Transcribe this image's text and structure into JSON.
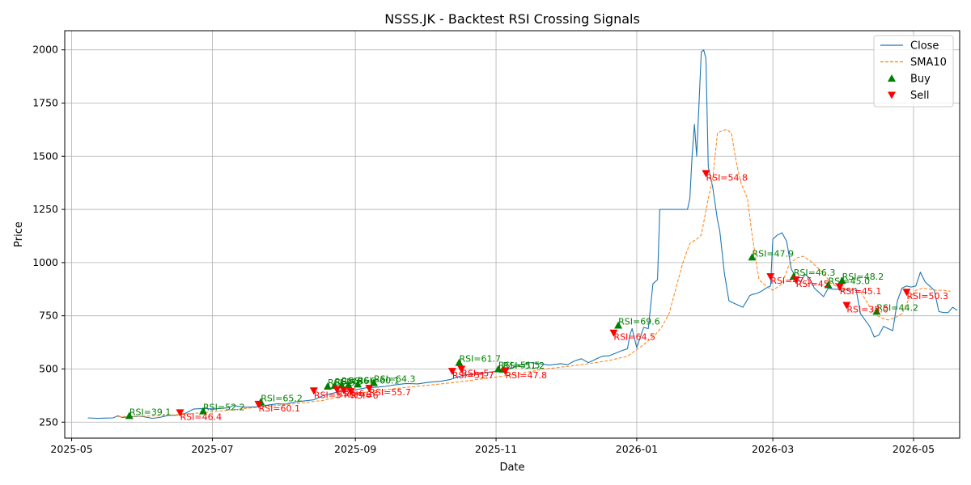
{
  "colors": {
    "close": "#1f77b4",
    "sma": "#ff7f0e",
    "buy": "#008000",
    "sell": "#ff0000",
    "grid": "#b0b0b0"
  },
  "chart_data": {
    "type": "line",
    "title": "NSSS.JK - Backtest RSI Crossing Signals",
    "xlabel": "Date",
    "ylabel": "Price",
    "xlim": [
      "2025-04-28",
      "2026-05-21"
    ],
    "ylim": [
      175,
      2090
    ],
    "x_ticks": [
      "2025-05-01",
      "2025-07-01",
      "2025-09-01",
      "2025-11-01",
      "2026-01-01",
      "2026-03-01",
      "2026-05-01"
    ],
    "x_tick_labels": [
      "2025-05",
      "2025-07",
      "2025-09",
      "2025-11",
      "2026-01",
      "2026-03",
      "2026-05"
    ],
    "y_ticks": [
      250,
      500,
      750,
      1000,
      1250,
      1500,
      1750,
      2000
    ],
    "grid": true,
    "legend_position": "top-right",
    "series": [
      {
        "name": "Close",
        "style": "solid",
        "points": [
          [
            "2025-05-08",
            270
          ],
          [
            "2025-05-12",
            268
          ],
          [
            "2025-05-19",
            270
          ],
          [
            "2025-05-21",
            280
          ],
          [
            "2025-05-23",
            272
          ],
          [
            "2025-05-27",
            276
          ],
          [
            "2025-05-31",
            278
          ],
          [
            "2025-06-05",
            268
          ],
          [
            "2025-06-08",
            272
          ],
          [
            "2025-06-12",
            282
          ],
          [
            "2025-06-15",
            282
          ],
          [
            "2025-06-19",
            290
          ],
          [
            "2025-06-23",
            312
          ],
          [
            "2025-06-27",
            314
          ],
          [
            "2025-07-02",
            312
          ],
          [
            "2025-07-08",
            318
          ],
          [
            "2025-07-10",
            328
          ],
          [
            "2025-07-15",
            320
          ],
          [
            "2025-07-20",
            322
          ],
          [
            "2025-07-25",
            330
          ],
          [
            "2025-07-29",
            336
          ],
          [
            "2025-08-02",
            335
          ],
          [
            "2025-08-05",
            344
          ],
          [
            "2025-08-10",
            350
          ],
          [
            "2025-08-14",
            355
          ],
          [
            "2025-08-18",
            375
          ],
          [
            "2025-08-23",
            388
          ],
          [
            "2025-08-27",
            398
          ],
          [
            "2025-09-01",
            402
          ],
          [
            "2025-09-06",
            412
          ],
          [
            "2025-09-11",
            415
          ],
          [
            "2025-09-14",
            418
          ],
          [
            "2025-09-18",
            425
          ],
          [
            "2025-09-23",
            432
          ],
          [
            "2025-09-28",
            430
          ],
          [
            "2025-10-03",
            438
          ],
          [
            "2025-10-08",
            442
          ],
          [
            "2025-10-12",
            450
          ],
          [
            "2025-10-16",
            465
          ],
          [
            "2025-10-20",
            475
          ],
          [
            "2025-10-25",
            478
          ],
          [
            "2025-10-29",
            485
          ],
          [
            "2025-11-03",
            492
          ],
          [
            "2025-11-06",
            498
          ],
          [
            "2025-11-08",
            505
          ],
          [
            "2025-11-12",
            520
          ],
          [
            "2025-11-16",
            530
          ],
          [
            "2025-11-20",
            525
          ],
          [
            "2025-11-24",
            518
          ],
          [
            "2025-11-29",
            525
          ],
          [
            "2025-12-02",
            520
          ],
          [
            "2025-12-05",
            538
          ],
          [
            "2025-12-08",
            548
          ],
          [
            "2025-12-11",
            530
          ],
          [
            "2025-12-14",
            545
          ],
          [
            "2025-12-17",
            560
          ],
          [
            "2025-12-20",
            562
          ],
          [
            "2025-12-23",
            575
          ],
          [
            "2025-12-26",
            588
          ],
          [
            "2025-12-28",
            595
          ],
          [
            "2025-12-29",
            660
          ],
          [
            "2025-12-30",
            690
          ],
          [
            "2026-01-01",
            600
          ],
          [
            "2026-01-04",
            695
          ],
          [
            "2026-01-06",
            690
          ],
          [
            "2026-01-08",
            900
          ],
          [
            "2026-01-10",
            920
          ],
          [
            "2026-01-11",
            1250
          ],
          [
            "2026-01-15",
            1250
          ],
          [
            "2026-01-18",
            1250
          ],
          [
            "2026-01-20",
            1250
          ],
          [
            "2026-01-23",
            1250
          ],
          [
            "2026-01-24",
            1300
          ],
          [
            "2026-01-25",
            1500
          ],
          [
            "2026-01-26",
            1650
          ],
          [
            "2026-01-27",
            1500
          ],
          [
            "2026-01-28",
            1750
          ],
          [
            "2026-01-29",
            1990
          ],
          [
            "2026-01-30",
            2000
          ],
          [
            "2026-01-31",
            1960
          ],
          [
            "2026-02-01",
            1450
          ],
          [
            "2026-02-03",
            1350
          ],
          [
            "2026-02-05",
            1200
          ],
          [
            "2026-02-06",
            1150
          ],
          [
            "2026-02-07",
            1050
          ],
          [
            "2026-02-08",
            950
          ],
          [
            "2026-02-10",
            820
          ],
          [
            "2026-02-13",
            805
          ],
          [
            "2026-02-16",
            790
          ],
          [
            "2026-02-19",
            845
          ],
          [
            "2026-02-20",
            850
          ],
          [
            "2026-02-22",
            855
          ],
          [
            "2026-02-24",
            865
          ],
          [
            "2026-02-26",
            880
          ],
          [
            "2026-02-28",
            890
          ],
          [
            "2026-03-01",
            1110
          ],
          [
            "2026-03-03",
            1130
          ],
          [
            "2026-03-05",
            1140
          ],
          [
            "2026-03-07",
            1100
          ],
          [
            "2026-03-09",
            970
          ],
          [
            "2026-03-11",
            930
          ],
          [
            "2026-03-13",
            910
          ],
          [
            "2026-03-15",
            945
          ],
          [
            "2026-03-17",
            925
          ],
          [
            "2026-03-19",
            880
          ],
          [
            "2026-03-21",
            860
          ],
          [
            "2026-03-23",
            840
          ],
          [
            "2026-03-25",
            880
          ],
          [
            "2026-03-27",
            875
          ],
          [
            "2026-03-29",
            875
          ],
          [
            "2026-03-31",
            870
          ],
          [
            "2026-04-02",
            875
          ],
          [
            "2026-04-04",
            870
          ],
          [
            "2026-04-06",
            880
          ],
          [
            "2026-04-08",
            760
          ],
          [
            "2026-04-10",
            730
          ],
          [
            "2026-04-12",
            700
          ],
          [
            "2026-04-14",
            650
          ],
          [
            "2026-04-16",
            660
          ],
          [
            "2026-04-18",
            700
          ],
          [
            "2026-04-20",
            690
          ],
          [
            "2026-04-22",
            680
          ],
          [
            "2026-04-24",
            820
          ],
          [
            "2026-04-26",
            880
          ],
          [
            "2026-04-28",
            890
          ],
          [
            "2026-04-30",
            885
          ],
          [
            "2026-05-02",
            890
          ],
          [
            "2026-05-04",
            955
          ],
          [
            "2026-05-06",
            910
          ],
          [
            "2026-05-08",
            890
          ],
          [
            "2026-05-10",
            870
          ],
          [
            "2026-05-12",
            770
          ],
          [
            "2026-05-14",
            765
          ],
          [
            "2026-05-16",
            765
          ],
          [
            "2026-05-18",
            790
          ],
          [
            "2026-05-20",
            775
          ]
        ]
      },
      {
        "name": "SMA10",
        "style": "dashed",
        "points": [
          [
            "2025-05-21",
            276
          ],
          [
            "2025-06-01",
            278
          ],
          [
            "2025-06-12",
            282
          ],
          [
            "2025-06-22",
            290
          ],
          [
            "2025-07-02",
            300
          ],
          [
            "2025-07-15",
            314
          ],
          [
            "2025-07-25",
            324
          ],
          [
            "2025-08-05",
            336
          ],
          [
            "2025-08-18",
            352
          ],
          [
            "2025-08-28",
            378
          ],
          [
            "2025-09-08",
            395
          ],
          [
            "2025-09-20",
            410
          ],
          [
            "2025-10-01",
            422
          ],
          [
            "2025-10-12",
            434
          ],
          [
            "2025-10-22",
            448
          ],
          [
            "2025-11-01",
            462
          ],
          [
            "2025-11-12",
            480
          ],
          [
            "2025-11-22",
            500
          ],
          [
            "2025-12-02",
            512
          ],
          [
            "2025-12-12",
            526
          ],
          [
            "2025-12-20",
            540
          ],
          [
            "2025-12-28",
            560
          ],
          [
            "2026-01-04",
            615
          ],
          [
            "2026-01-09",
            660
          ],
          [
            "2026-01-12",
            700
          ],
          [
            "2026-01-15",
            760
          ],
          [
            "2026-01-18",
            880
          ],
          [
            "2026-01-21",
            1000
          ],
          [
            "2026-01-24",
            1090
          ],
          [
            "2026-01-27",
            1110
          ],
          [
            "2026-01-29",
            1130
          ],
          [
            "2026-02-01",
            1300
          ],
          [
            "2026-02-03",
            1400
          ],
          [
            "2026-02-05",
            1610
          ],
          [
            "2026-02-07",
            1620
          ],
          [
            "2026-02-09",
            1625
          ],
          [
            "2026-02-11",
            1610
          ],
          [
            "2026-02-13",
            1480
          ],
          [
            "2026-02-15",
            1380
          ],
          [
            "2026-02-18",
            1300
          ],
          [
            "2026-02-20",
            1130
          ],
          [
            "2026-02-23",
            920
          ],
          [
            "2026-02-26",
            890
          ],
          [
            "2026-03-01",
            870
          ],
          [
            "2026-03-05",
            900
          ],
          [
            "2026-03-08",
            990
          ],
          [
            "2026-03-11",
            1020
          ],
          [
            "2026-03-14",
            1030
          ],
          [
            "2026-03-17",
            1010
          ],
          [
            "2026-03-20",
            980
          ],
          [
            "2026-03-23",
            950
          ],
          [
            "2026-03-26",
            905
          ],
          [
            "2026-03-29",
            885
          ],
          [
            "2026-04-01",
            880
          ],
          [
            "2026-04-04",
            880
          ],
          [
            "2026-04-08",
            865
          ],
          [
            "2026-04-11",
            810
          ],
          [
            "2026-04-14",
            760
          ],
          [
            "2026-04-17",
            740
          ],
          [
            "2026-04-20",
            730
          ],
          [
            "2026-04-23",
            740
          ],
          [
            "2026-04-26",
            760
          ],
          [
            "2026-04-29",
            830
          ],
          [
            "2026-05-02",
            870
          ],
          [
            "2026-05-05",
            880
          ],
          [
            "2026-05-08",
            875
          ],
          [
            "2026-05-11",
            870
          ],
          [
            "2026-05-14",
            870
          ],
          [
            "2026-05-17",
            865
          ]
        ]
      }
    ],
    "signals": [
      {
        "type": "Buy",
        "date": "2025-05-26",
        "price": 280,
        "label": "RSI=39.1"
      },
      {
        "type": "Buy",
        "date": "2025-06-27",
        "price": 302,
        "label": "RSI=52.2"
      },
      {
        "type": "Buy",
        "date": "2025-07-22",
        "price": 345,
        "label": "RSI=65.2"
      },
      {
        "type": "Buy",
        "date": "2025-08-20",
        "price": 418,
        "label": "RSI=5"
      },
      {
        "type": "Buy",
        "date": "2025-08-23",
        "price": 422,
        "label": "RSI=6"
      },
      {
        "type": "Buy",
        "date": "2025-08-26",
        "price": 425,
        "label": "RSI=6"
      },
      {
        "type": "Buy",
        "date": "2025-08-29",
        "price": 425,
        "label": "RSI=6"
      },
      {
        "type": "Buy",
        "date": "2025-09-02",
        "price": 428,
        "label": "RSI=60.1"
      },
      {
        "type": "Buy",
        "date": "2025-09-09",
        "price": 435,
        "label": "RSI=64.3"
      },
      {
        "type": "Buy",
        "date": "2025-10-16",
        "price": 530,
        "label": "RSI=61.7"
      },
      {
        "type": "Buy",
        "date": "2025-11-02",
        "price": 500,
        "label": "RSI=51.5"
      },
      {
        "type": "Buy",
        "date": "2025-11-04",
        "price": 498,
        "label": "RSI=51.2"
      },
      {
        "type": "Buy",
        "date": "2025-12-24",
        "price": 705,
        "label": "RSI=69.6"
      },
      {
        "type": "Buy",
        "date": "2026-02-20",
        "price": 1025,
        "label": "RSI=47.9"
      },
      {
        "type": "Buy",
        "date": "2026-03-10",
        "price": 935,
        "label": "RSI=46.3"
      },
      {
        "type": "Buy",
        "date": "2026-03-25",
        "price": 895,
        "label": "RSI=45.0"
      },
      {
        "type": "Buy",
        "date": "2026-03-31",
        "price": 915,
        "label": "RSI=48.2"
      },
      {
        "type": "Buy",
        "date": "2026-04-15",
        "price": 770,
        "label": "RSI=44.2"
      },
      {
        "type": "Sell",
        "date": "2025-06-17",
        "price": 295,
        "label": "RSI=46.4"
      },
      {
        "type": "Sell",
        "date": "2025-07-21",
        "price": 335,
        "label": "RSI=60.1"
      },
      {
        "type": "Sell",
        "date": "2025-08-14",
        "price": 398,
        "label": "RSI=5"
      },
      {
        "type": "Sell",
        "date": "2025-08-24",
        "price": 404,
        "label": "RSI=6"
      },
      {
        "type": "Sell",
        "date": "2025-08-27",
        "price": 400,
        "label": "RSI=6"
      },
      {
        "type": "Sell",
        "date": "2025-08-30",
        "price": 395,
        "label": "RSI=6"
      },
      {
        "type": "Sell",
        "date": "2025-09-07",
        "price": 410,
        "label": "RSI=55.7"
      },
      {
        "type": "Sell",
        "date": "2025-10-13",
        "price": 490,
        "label": "RSI=51.7"
      },
      {
        "type": "Sell",
        "date": "2025-10-17",
        "price": 500,
        "label": "RSI=5"
      },
      {
        "type": "Sell",
        "date": "2025-11-05",
        "price": 490,
        "label": "RSI=47.8"
      },
      {
        "type": "Sell",
        "date": "2025-12-22",
        "price": 670,
        "label": "RSI=64.5"
      },
      {
        "type": "Sell",
        "date": "2026-01-31",
        "price": 1420,
        "label": "RSI=54.8"
      },
      {
        "type": "Sell",
        "date": "2026-02-28",
        "price": 935,
        "label": "RSI=47.5"
      },
      {
        "type": "Sell",
        "date": "2026-03-11",
        "price": 920,
        "label": "RSI=45"
      },
      {
        "type": "Sell",
        "date": "2026-03-30",
        "price": 885,
        "label": "RSI=45.1"
      },
      {
        "type": "Sell",
        "date": "2026-04-02",
        "price": 800,
        "label": "RSI=38.0"
      },
      {
        "type": "Sell",
        "date": "2026-04-28",
        "price": 862,
        "label": "RSI=50.3"
      }
    ],
    "legend": [
      {
        "label": "Close",
        "kind": "line-solid"
      },
      {
        "label": "SMA10",
        "kind": "line-dashed"
      },
      {
        "label": "Buy",
        "kind": "marker-up"
      },
      {
        "label": "Sell",
        "kind": "marker-down"
      }
    ]
  }
}
